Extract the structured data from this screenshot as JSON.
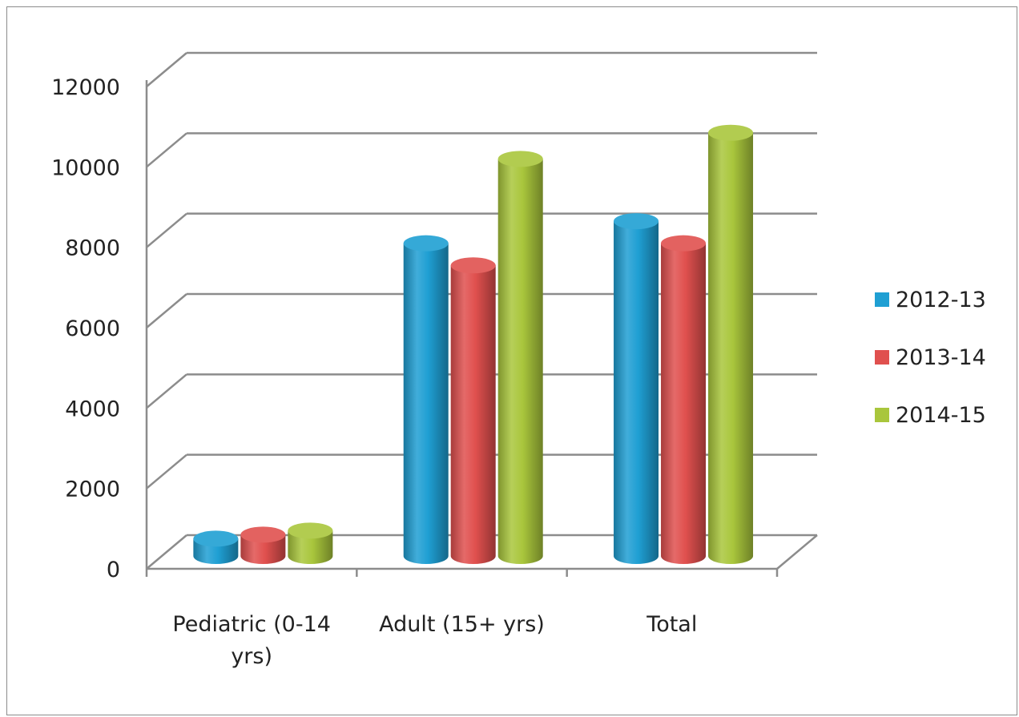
{
  "chart_data": {
    "type": "bar",
    "style": "3d-cylinder",
    "categories": [
      "Pediatric (0-14 yrs)",
      "Adult (15+ yrs)",
      "Total"
    ],
    "category_lines": [
      [
        "Pediatric (0-14",
        "yrs)"
      ],
      [
        "Adult (15+ yrs)"
      ],
      [
        "Total"
      ]
    ],
    "series": [
      {
        "name": "2012-13",
        "color": "#1f9fd3",
        "values": [
          550,
          7900,
          8450
        ]
      },
      {
        "name": "2013-14",
        "color": "#e0504e",
        "values": [
          650,
          7350,
          7900
        ]
      },
      {
        "name": "2014-15",
        "color": "#a9c63c",
        "values": [
          750,
          10000,
          10650
        ]
      }
    ],
    "ylim": [
      0,
      12000
    ],
    "yticks": [
      "0",
      "2000",
      "4000",
      "6000",
      "8000",
      "10000",
      "12000"
    ],
    "grid": true,
    "legend_position": "right"
  }
}
